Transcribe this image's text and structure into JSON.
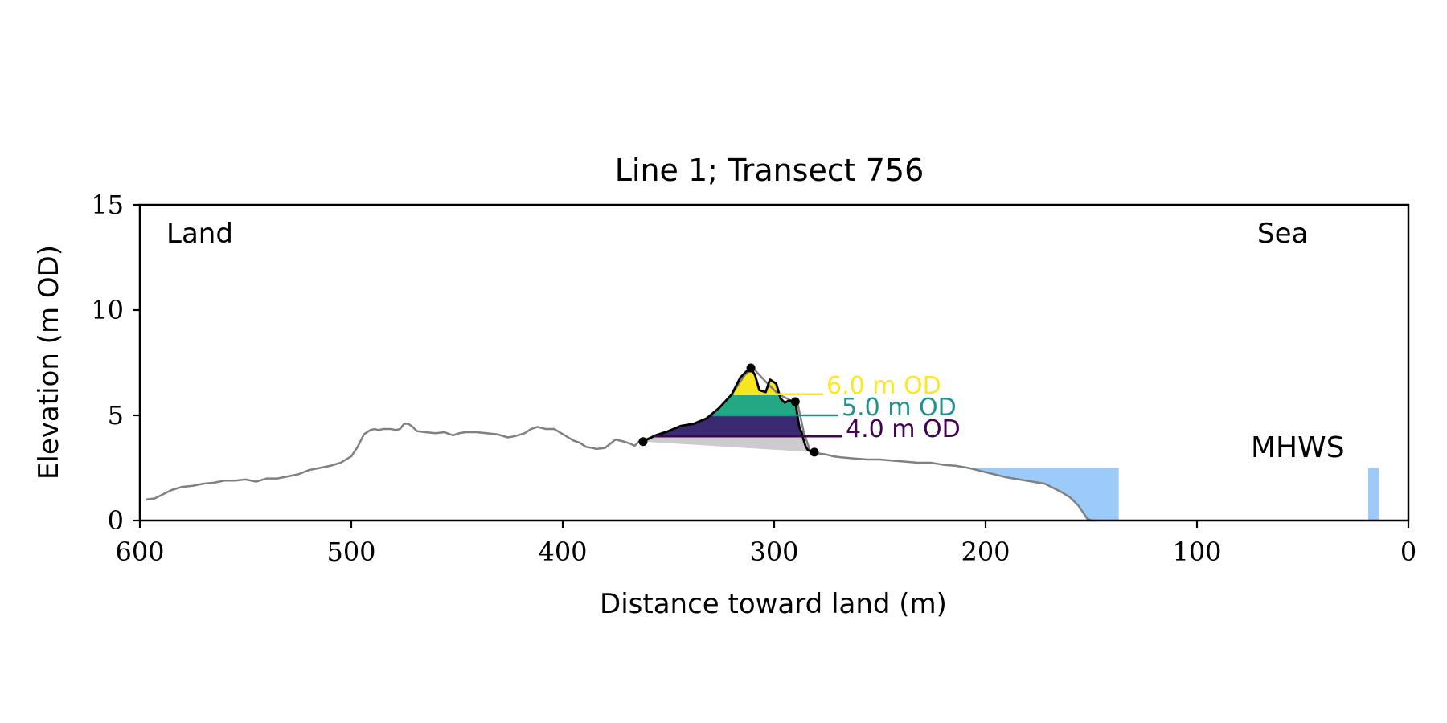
{
  "chart_data": {
    "type": "line",
    "title": "Line 1; Transect 756",
    "xlabel": "Distance toward land (m)",
    "ylabel": "Elevation (m OD)",
    "x_reversed": true,
    "xlim": [
      600,
      0
    ],
    "ylim": [
      0,
      15
    ],
    "x_ticks": [
      600,
      500,
      400,
      300,
      200,
      100,
      0
    ],
    "y_ticks": [
      0,
      5,
      10,
      15
    ],
    "grid": false,
    "legend": "none",
    "annotations": {
      "land_label": "Land",
      "sea_label": "Sea",
      "mhws_label": "MHWS"
    },
    "colors": {
      "profile": "#808080",
      "dune": "#000000",
      "base_fill": "#cccccc",
      "water": "#9ccbfa",
      "mhws_text": "#6a9bd1",
      "contour_4": "#440154",
      "contour_5": "#21918c",
      "contour_6": "#fde725",
      "band_4_5": "#3b2a72",
      "band_5_6": "#23a883",
      "band_6_up": "#f7e51e"
    },
    "profile": {
      "x": [
        597,
        593,
        590,
        585,
        580,
        575,
        570,
        565,
        560,
        555,
        550,
        545,
        540,
        535,
        530,
        525,
        520,
        515,
        510,
        505,
        500,
        497,
        494,
        491,
        489,
        487,
        485,
        483,
        481,
        479,
        477,
        475,
        473,
        471,
        469,
        465,
        460,
        456,
        452,
        449,
        446,
        441,
        436,
        431,
        426,
        423,
        418,
        415,
        412,
        408,
        404,
        399,
        395,
        392,
        389,
        386,
        384,
        380,
        375,
        371,
        368,
        366,
        364,
        362,
        356,
        350,
        344,
        338,
        332,
        326,
        320,
        314,
        310,
        304,
        298,
        292,
        289,
        286,
        283,
        280,
        276,
        272,
        268,
        262,
        256,
        250,
        244,
        238,
        232,
        226,
        220,
        214,
        208,
        202,
        196,
        190,
        184,
        178,
        172,
        168,
        164,
        160,
        156,
        154,
        152,
        150,
        148
      ],
      "y": [
        1.0,
        1.05,
        1.2,
        1.45,
        1.6,
        1.65,
        1.75,
        1.8,
        1.9,
        1.9,
        1.95,
        1.85,
        2.0,
        2.0,
        2.1,
        2.2,
        2.4,
        2.5,
        2.6,
        2.75,
        3.05,
        3.5,
        4.1,
        4.3,
        4.35,
        4.3,
        4.35,
        4.35,
        4.35,
        4.3,
        4.35,
        4.6,
        4.6,
        4.45,
        4.25,
        4.2,
        4.15,
        4.2,
        4.05,
        4.15,
        4.2,
        4.2,
        4.15,
        4.1,
        3.95,
        4.0,
        4.15,
        4.35,
        4.45,
        4.35,
        4.35,
        4.05,
        3.8,
        3.7,
        3.5,
        3.45,
        3.4,
        3.45,
        3.85,
        3.75,
        3.65,
        3.55,
        3.75,
        3.8,
        4.05,
        4.25,
        4.5,
        4.6,
        4.85,
        5.35,
        6.0,
        6.9,
        7.25,
        6.6,
        6.0,
        5.7,
        5.6,
        4.2,
        3.3,
        3.2,
        3.15,
        3.05,
        3.0,
        2.95,
        2.9,
        2.9,
        2.85,
        2.8,
        2.75,
        2.75,
        2.65,
        2.6,
        2.5,
        2.35,
        2.2,
        2.05,
        1.95,
        1.85,
        1.75,
        1.55,
        1.35,
        1.1,
        0.7,
        0.4,
        0.1,
        0.0,
        0.0
      ]
    },
    "dune": {
      "x": [
        362,
        356,
        350,
        344,
        338,
        332,
        326,
        320,
        316,
        313,
        311,
        309,
        307,
        304,
        302,
        299,
        297,
        295,
        293,
        290,
        289,
        288,
        287,
        286,
        285,
        284,
        283,
        282,
        281
      ],
      "y": [
        3.75,
        4.05,
        4.25,
        4.5,
        4.6,
        4.85,
        5.35,
        6.0,
        6.8,
        7.1,
        7.25,
        6.9,
        6.2,
        6.1,
        6.7,
        6.5,
        5.8,
        5.6,
        5.7,
        5.65,
        5.0,
        4.4,
        4.2,
        3.8,
        3.5,
        3.35,
        3.3,
        3.28,
        3.25
      ]
    },
    "dune_points": [
      {
        "x": 362,
        "y": 3.75
      },
      {
        "x": 311,
        "y": 7.25
      },
      {
        "x": 290,
        "y": 5.65
      },
      {
        "x": 281,
        "y": 3.25
      }
    ],
    "contours": [
      {
        "label": "6.0 m OD",
        "level": 6.0,
        "x0": 319,
        "x1": 293
      },
      {
        "label": "5.0 m OD",
        "level": 5.0,
        "x0": 329,
        "x1": 289
      },
      {
        "label": "4.0 m OD",
        "level": 4.0,
        "x0": 357,
        "x1": 288
      }
    ],
    "water": {
      "level": 2.5,
      "segments": [
        {
          "x0": 206,
          "x1": 137
        },
        {
          "x0": 19,
          "x1": 14
        }
      ]
    }
  }
}
